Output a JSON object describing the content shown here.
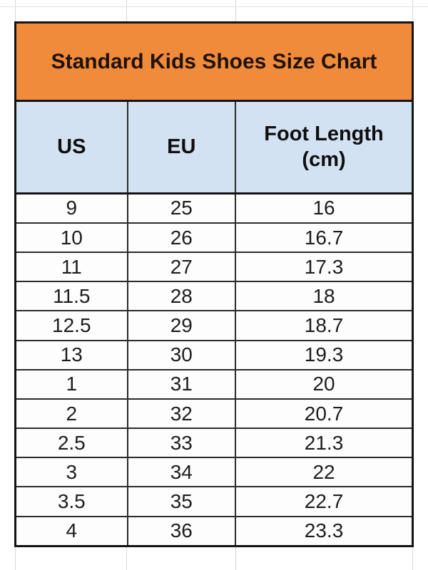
{
  "page": {
    "background": "#ffffff",
    "gridline_color": "#d7d7d7"
  },
  "colors": {
    "title_bg": "#f08b3c",
    "header_bg": "#d3e2f2",
    "outer_border": "#131313",
    "inner_border": "#2b2b2b",
    "text": "#1d1d1d"
  },
  "table": {
    "title": "Standard Kids Shoes Size Chart",
    "header": {
      "us": "US",
      "eu": "EU",
      "foot_length_line1": "Foot Length",
      "foot_length_line2": "(cm)"
    }
  },
  "chart_data": {
    "type": "table",
    "title": "Standard Kids Shoes Size Chart",
    "columns": [
      "US",
      "EU",
      "Foot Length (cm)"
    ],
    "column_keys": [
      "us",
      "eu",
      "foot-length-cm"
    ],
    "rows": [
      [
        "9",
        "25",
        "16"
      ],
      [
        "10",
        "26",
        "16.7"
      ],
      [
        "11",
        "27",
        "17.3"
      ],
      [
        "11.5",
        "28",
        "18"
      ],
      [
        "12.5",
        "29",
        "18.7"
      ],
      [
        "13",
        "30",
        "19.3"
      ],
      [
        "1",
        "31",
        "20"
      ],
      [
        "2",
        "32",
        "20.7"
      ],
      [
        "2.5",
        "33",
        "21.3"
      ],
      [
        "3",
        "34",
        "22"
      ],
      [
        "3.5",
        "35",
        "22.7"
      ],
      [
        "4",
        "36",
        "23.3"
      ]
    ]
  }
}
